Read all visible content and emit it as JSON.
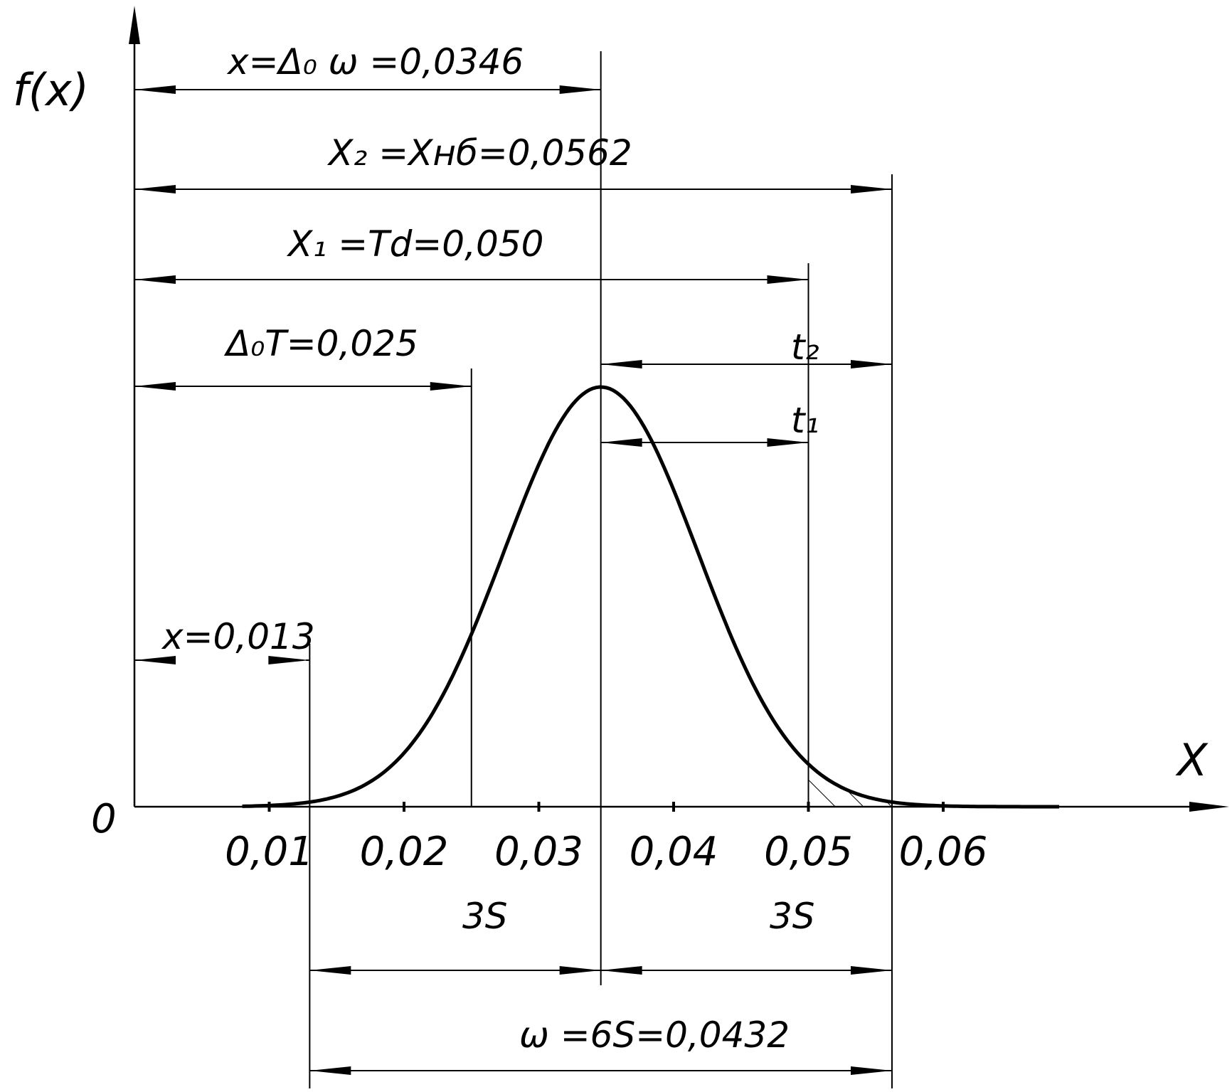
{
  "chart_data": {
    "type": "line",
    "xlabel": "X",
    "ylabel": "f(x)",
    "origin_label": "0",
    "xlim": [
      0,
      0.068
    ],
    "x_ticks": [
      0.01,
      0.02,
      0.03,
      0.04,
      0.05,
      0.06
    ],
    "x_tick_labels": [
      "0,01",
      "0,02",
      "0,03",
      "0,04",
      "0,05",
      "0,06"
    ],
    "series": [
      {
        "distribution": "normal",
        "mean": 0.0346,
        "std_dev": 0.0072,
        "x_range": [
          0.008,
          0.0686
        ]
      }
    ],
    "shaded_region": {
      "x_from": 0.05,
      "x_to": 0.0562,
      "style": "hatch"
    },
    "annotations": {
      "mean": {
        "text": "x=Δ₀ ω =0,0346",
        "value": 0.0346
      },
      "x2": {
        "text": "X₂ =Xнб=0,0562",
        "value": 0.0562
      },
      "x1": {
        "text": "X₁ =Td=0,050",
        "value": 0.05
      },
      "delta_t": {
        "text": "Δ₀T=0,025",
        "value": 0.025
      },
      "t2": {
        "text": "t₂"
      },
      "t1": {
        "text": "t₁"
      },
      "x_min": {
        "text": "x=0,013",
        "value": 0.013
      },
      "three_s_left": {
        "text": "3S"
      },
      "three_s_right": {
        "text": "3S"
      },
      "omega": {
        "text": "ω =6S=0,0432",
        "value": 0.0432
      }
    }
  }
}
